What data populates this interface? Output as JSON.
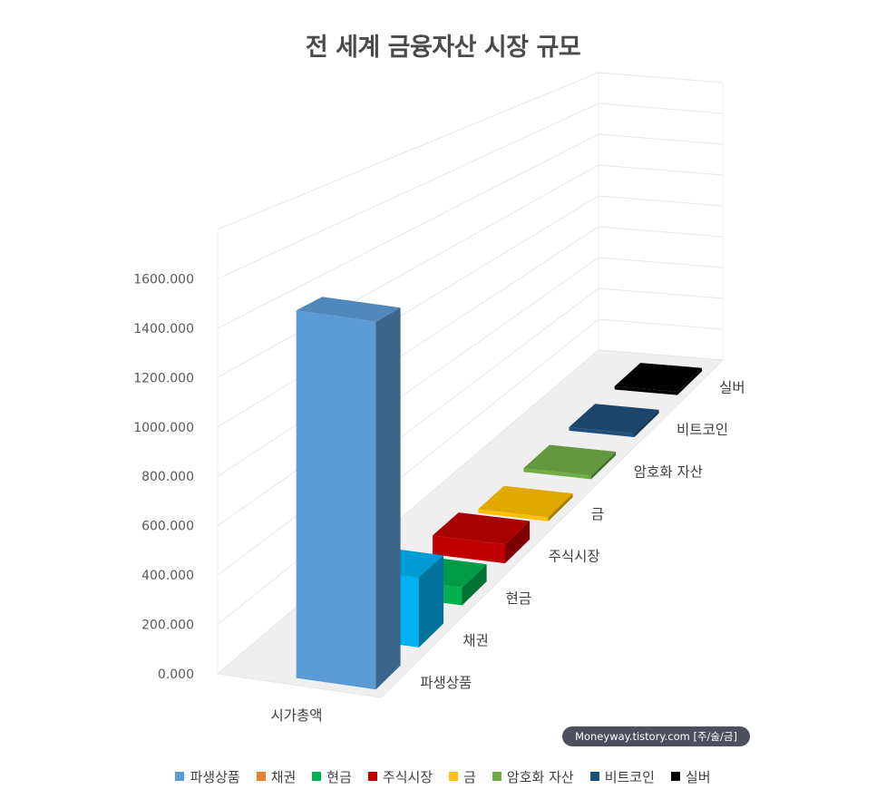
{
  "chart_data": {
    "type": "bar",
    "subtype": "3d-column",
    "title": "전 세계 금융자산 시장 규모",
    "categories": [
      "시가총액"
    ],
    "yaxis": {
      "ticks": [
        "0.000",
        "200.000",
        "400.000",
        "600.000",
        "800.000",
        "1000.000",
        "1200.000",
        "1400.000",
        "1600.000"
      ],
      "range": [
        0,
        1800
      ]
    },
    "depth_labels": [
      "파생상품",
      "채권",
      "현금",
      "주식시장",
      "금",
      "암호화 자산",
      "비트코인",
      "실버"
    ],
    "series": [
      {
        "name": "파생상품",
        "values": [
          1500
        ],
        "color": "#5b9bd5"
      },
      {
        "name": "채권",
        "values": [
          300
        ],
        "color": "#ed7d31"
      },
      {
        "name": "현금",
        "values": [
          80
        ],
        "color": "#00b050"
      },
      {
        "name": "주식시장",
        "values": [
          90
        ],
        "color": "#c00000"
      },
      {
        "name": "금",
        "values": [
          12
        ],
        "color": "#ffc000"
      },
      {
        "name": "암호화 자산",
        "values": [
          2.5
        ],
        "color": "#70ad47"
      },
      {
        "name": "비트코인",
        "values": [
          1.2
        ],
        "color": "#1f4e79"
      },
      {
        "name": "실버",
        "values": [
          1.4
        ],
        "color": "#000000"
      }
    ],
    "legend_position": "bottom",
    "grid": true
  },
  "watermark": "Moneyway.tistory.com [주/술/금]"
}
